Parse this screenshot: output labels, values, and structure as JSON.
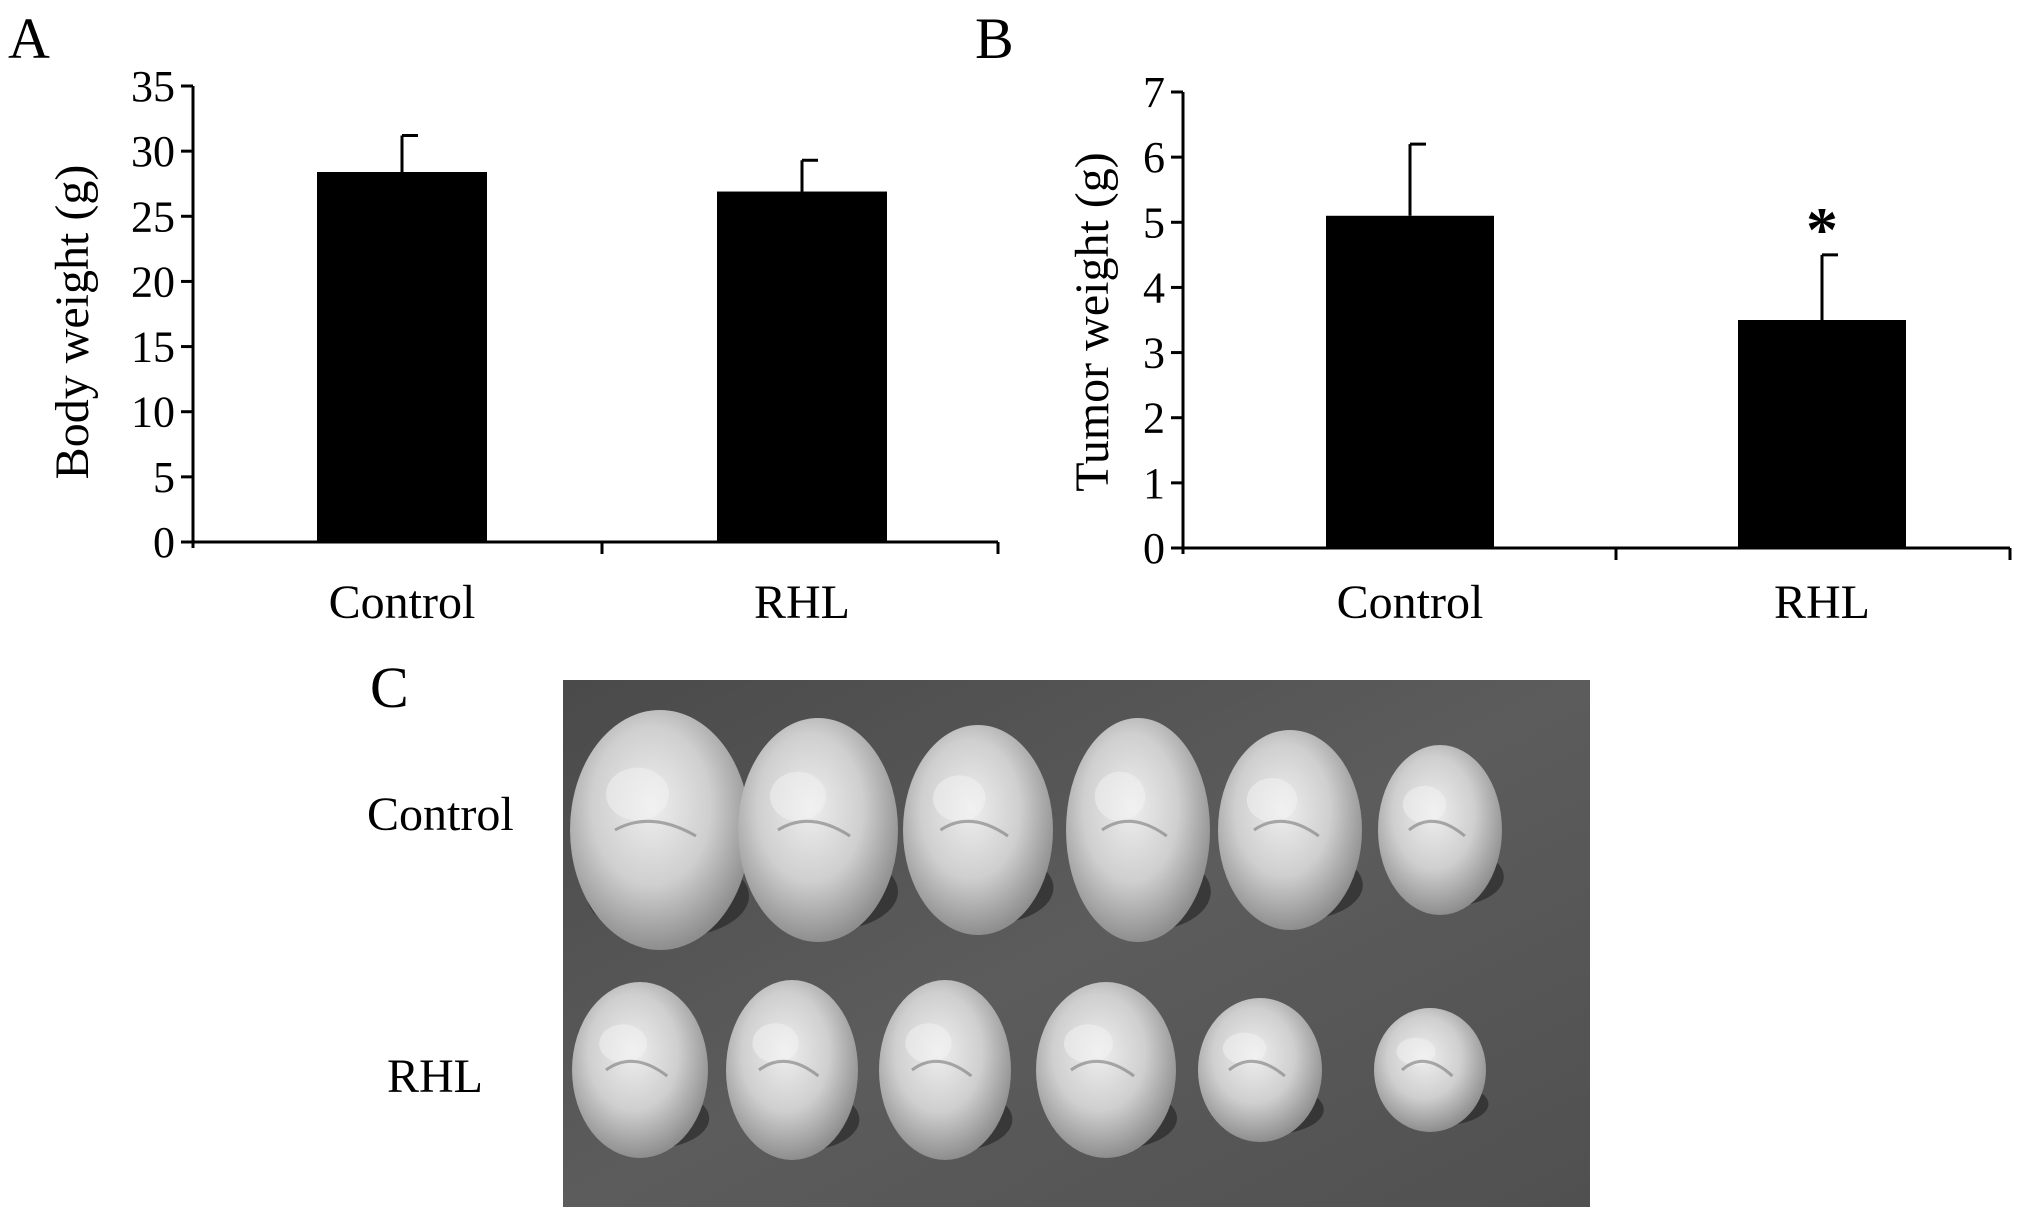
{
  "chart_data": [
    {
      "panel": "A",
      "type": "bar",
      "categories": [
        "Control",
        "RHL"
      ],
      "values": [
        28.4,
        26.9
      ],
      "errors": [
        2.8,
        2.4
      ],
      "ylabel": "Body weight (g)",
      "ylim": [
        0,
        35
      ],
      "yticks": [
        "0",
        "5",
        "10",
        "15",
        "20",
        "25",
        "30",
        "35"
      ],
      "bar_color": "#000000",
      "significance": [
        "",
        ""
      ]
    },
    {
      "panel": "B",
      "type": "bar",
      "categories": [
        "Control",
        "RHL"
      ],
      "values": [
        5.1,
        3.5
      ],
      "errors": [
        1.1,
        1.0
      ],
      "ylabel": "Tumor weight (g)",
      "ylim": [
        0,
        7
      ],
      "yticks": [
        "0",
        "1",
        "2",
        "3",
        "4",
        "5",
        "6",
        "7"
      ],
      "bar_color": "#000000",
      "significance": [
        "",
        "*"
      ]
    }
  ],
  "photo_panel": {
    "panel": "C",
    "row_labels": [
      "Control",
      "RHL"
    ],
    "tumors_per_row": [
      6,
      6
    ],
    "background_color": "#555555",
    "tissue_color": "#cfcfcf"
  }
}
